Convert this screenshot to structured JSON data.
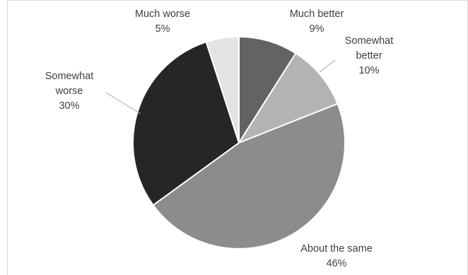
{
  "chart_data": {
    "type": "pie",
    "slices": [
      {
        "label": [
          "Much better"
        ],
        "value": 9,
        "value_text": "9%",
        "color": "#636363"
      },
      {
        "label": [
          "Somewhat",
          "better"
        ],
        "value": 10,
        "value_text": "10%",
        "color": "#b3b3b3"
      },
      {
        "label": [
          "About the same"
        ],
        "value": 46,
        "value_text": "46%",
        "color": "#8c8c8c"
      },
      {
        "label": [
          "Somewhat",
          "worse"
        ],
        "value": 30,
        "value_text": "30%",
        "color": "#262626"
      },
      {
        "label": [
          "Much worse"
        ],
        "value": 5,
        "value_text": "5%",
        "color": "#e3e3e3"
      }
    ],
    "start_angle_deg": 0,
    "direction": "clockwise",
    "legend": "none",
    "border_color": "#d9d9d9"
  }
}
